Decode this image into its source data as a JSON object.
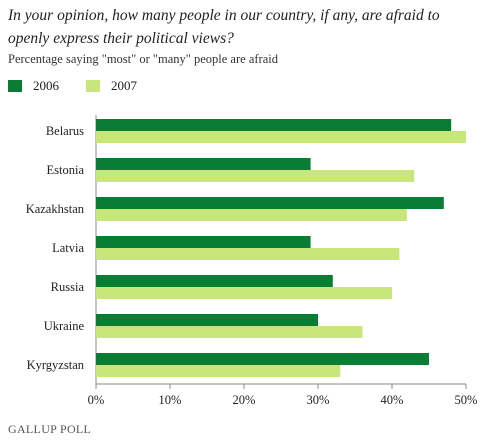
{
  "chart_data": {
    "type": "bar",
    "orientation": "horizontal",
    "title": "In your opinion, how many people in our country, if any, are afraid to openly express their political views?",
    "subtitle": "Percentage saying \"most\" or \"many\" people are afraid",
    "categories": [
      "Belarus",
      "Estonia",
      "Kazakhstan",
      "Latvia",
      "Russia",
      "Ukraine",
      "Kyrgyzstan"
    ],
    "series": [
      {
        "name": "2006",
        "color": "#0a7d35",
        "values": [
          48,
          29,
          47,
          29,
          32,
          30,
          45
        ]
      },
      {
        "name": "2007",
        "color": "#c8e67a",
        "values": [
          50,
          43,
          42,
          41,
          40,
          36,
          33
        ]
      }
    ],
    "xlim": [
      0,
      50
    ],
    "xticks": [
      0,
      10,
      20,
      30,
      40,
      50
    ],
    "tick_format": "%",
    "xlabel": "",
    "ylabel": "",
    "grid": false,
    "legend_position": "top-left"
  },
  "footer": {
    "brand": "GALLUP POLL"
  }
}
